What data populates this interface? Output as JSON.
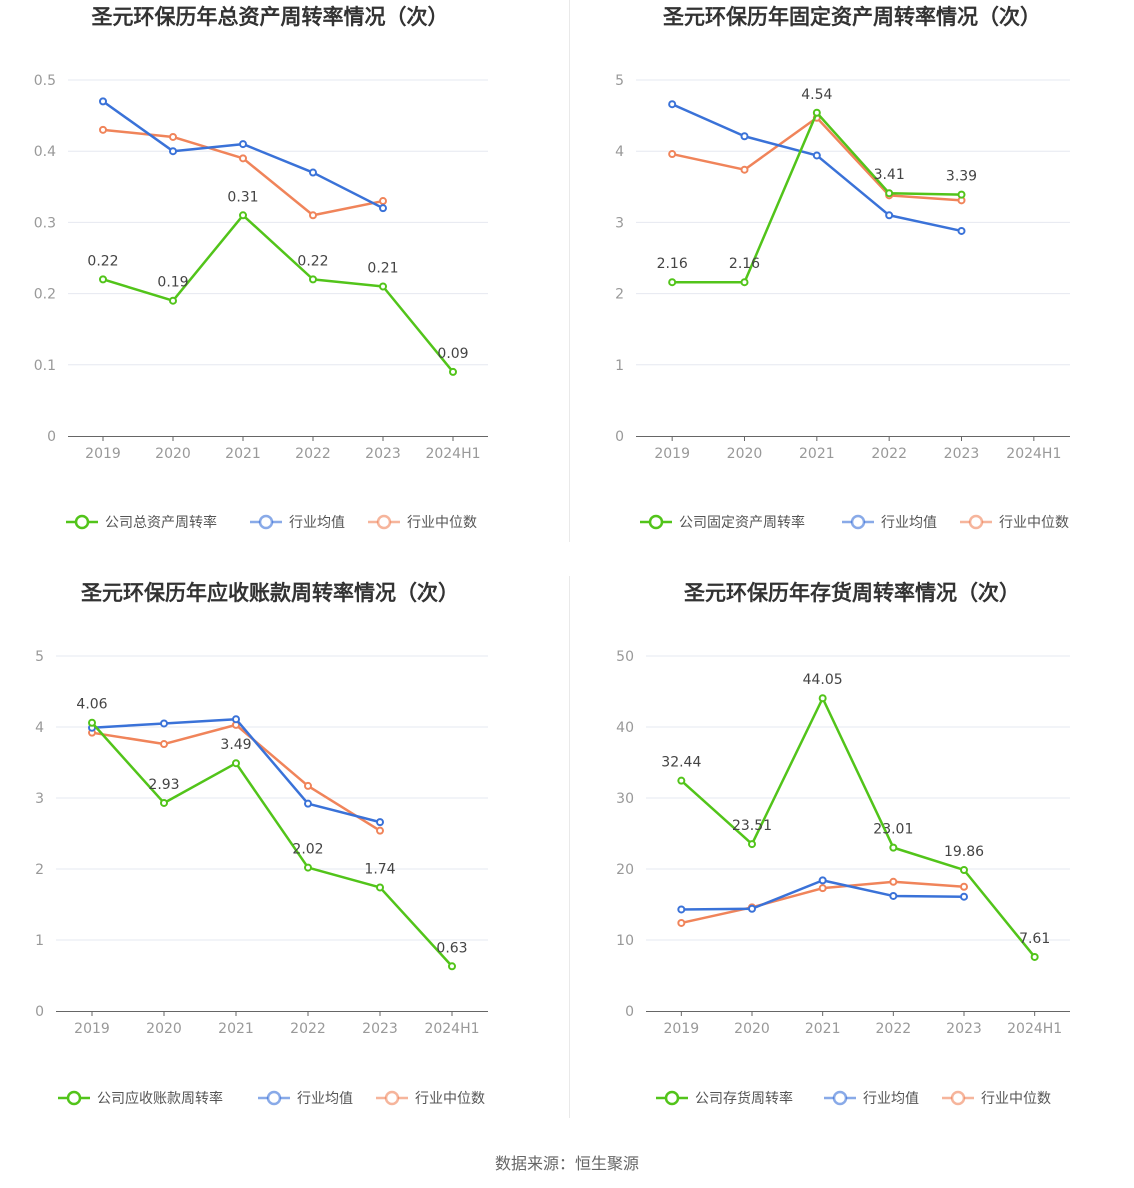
{
  "source": "数据来源：恒生聚源",
  "colors": {
    "company": "#52c41a",
    "avg": "#3a72d8",
    "median": "#f0845a",
    "grid": "#e6e8f0",
    "axis": "#666666"
  },
  "chart_data": [
    {
      "type": "line",
      "title": "圣元环保历年总资产周转率情况（次）",
      "categories": [
        "2019",
        "2020",
        "2021",
        "2022",
        "2023",
        "2024H1"
      ],
      "ylim": [
        0,
        0.5
      ],
      "yticks": [
        "0",
        "0.1",
        "0.2",
        "0.3",
        "0.4",
        "0.5"
      ],
      "ytick_values": [
        0,
        0.1,
        0.2,
        0.3,
        0.4,
        0.5
      ],
      "grid": true,
      "legend": "bottom",
      "series": [
        {
          "name": "公司总资产周转率",
          "color": "#52c41a",
          "values": [
            0.22,
            0.19,
            0.31,
            0.22,
            0.21,
            0.09
          ],
          "labels": [
            "0.22",
            "0.19",
            "0.31",
            "0.22",
            "0.21",
            "0.09"
          ]
        },
        {
          "name": "行业均值",
          "color": "#3a72d8",
          "values": [
            0.47,
            0.4,
            0.41,
            0.37,
            0.32,
            null
          ]
        },
        {
          "name": "行业中位数",
          "color": "#f0845a",
          "values": [
            0.43,
            0.42,
            0.39,
            0.31,
            0.33,
            null
          ]
        }
      ]
    },
    {
      "type": "line",
      "title": "圣元环保历年固定资产周转率情况（次）",
      "categories": [
        "2019",
        "2020",
        "2021",
        "2022",
        "2023",
        "2024H1"
      ],
      "ylim": [
        0,
        5
      ],
      "yticks": [
        "0",
        "1",
        "2",
        "3",
        "4",
        "5"
      ],
      "ytick_values": [
        0,
        1,
        2,
        3,
        4,
        5
      ],
      "grid": true,
      "legend": "bottom",
      "series": [
        {
          "name": "公司固定资产周转率",
          "color": "#52c41a",
          "values": [
            2.16,
            2.16,
            4.54,
            3.41,
            3.39,
            null
          ],
          "labels": [
            "2.16",
            "2.16",
            "4.54",
            "3.41",
            "3.39",
            ""
          ]
        },
        {
          "name": "行业均值",
          "color": "#3a72d8",
          "values": [
            4.66,
            4.21,
            3.94,
            3.1,
            2.88,
            null
          ]
        },
        {
          "name": "行业中位数",
          "color": "#f0845a",
          "values": [
            3.96,
            3.74,
            4.47,
            3.38,
            3.31,
            null
          ]
        }
      ]
    },
    {
      "type": "line",
      "title": "圣元环保历年应收账款周转率情况（次）",
      "categories": [
        "2019",
        "2020",
        "2021",
        "2022",
        "2023",
        "2024H1"
      ],
      "ylim": [
        0,
        5
      ],
      "yticks": [
        "0",
        "1",
        "2",
        "3",
        "4",
        "5"
      ],
      "ytick_values": [
        0,
        1,
        2,
        3,
        4,
        5
      ],
      "grid": true,
      "legend": "bottom",
      "series": [
        {
          "name": "公司应收账款周转率",
          "color": "#52c41a",
          "values": [
            4.06,
            2.93,
            3.49,
            2.02,
            1.74,
            0.63
          ],
          "labels": [
            "4.06",
            "2.93",
            "3.49",
            "2.02",
            "1.74",
            "0.63"
          ]
        },
        {
          "name": "行业均值",
          "color": "#3a72d8",
          "values": [
            3.99,
            4.05,
            4.11,
            2.92,
            2.66,
            null
          ]
        },
        {
          "name": "行业中位数",
          "color": "#f0845a",
          "values": [
            3.92,
            3.76,
            4.03,
            3.17,
            2.54,
            null
          ]
        }
      ]
    },
    {
      "type": "line",
      "title": "圣元环保历年存货周转率情况（次）",
      "categories": [
        "2019",
        "2020",
        "2021",
        "2022",
        "2023",
        "2024H1"
      ],
      "ylim": [
        0,
        50
      ],
      "yticks": [
        "0",
        "10",
        "20",
        "30",
        "40",
        "50"
      ],
      "ytick_values": [
        0,
        10,
        20,
        30,
        40,
        50
      ],
      "grid": true,
      "legend": "bottom",
      "series": [
        {
          "name": "公司存货周转率",
          "color": "#52c41a",
          "values": [
            32.44,
            23.51,
            44.05,
            23.01,
            19.86,
            7.61
          ],
          "labels": [
            "32.44",
            "23.51",
            "44.05",
            "23.01",
            "19.86",
            "7.61"
          ]
        },
        {
          "name": "行业均值",
          "color": "#3a72d8",
          "values": [
            14.3,
            14.4,
            18.4,
            16.2,
            16.1,
            null
          ]
        },
        {
          "name": "行业中位数",
          "color": "#f0845a",
          "values": [
            12.4,
            14.6,
            17.3,
            18.2,
            17.5,
            null
          ]
        }
      ]
    }
  ]
}
